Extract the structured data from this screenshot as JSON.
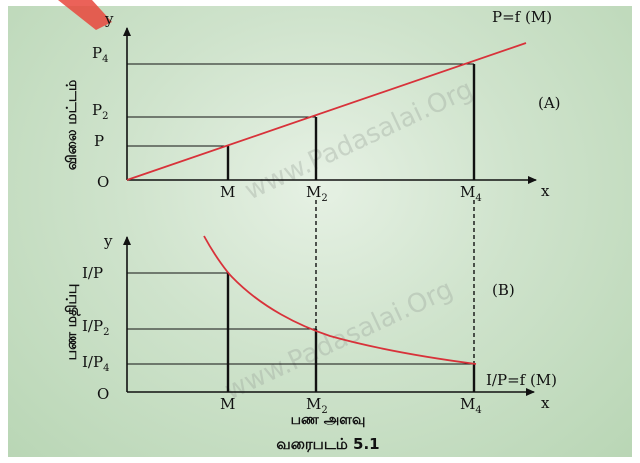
{
  "top": {
    "y_axis": "y",
    "x_axis": "x",
    "origin": "O",
    "y_axis_title": "விலை மட்டம்",
    "function_label": "P=f (M)",
    "panel_label": "(A)",
    "y_ticks": [
      {
        "base": "P",
        "sub": "4"
      },
      {
        "base": "P",
        "sub": "2"
      },
      {
        "base": "P",
        "sub": ""
      }
    ],
    "x_ticks": [
      {
        "base": "M",
        "sub": ""
      },
      {
        "base": "M",
        "sub": "2"
      },
      {
        "base": "M",
        "sub": "4"
      }
    ]
  },
  "bottom": {
    "y_axis": "y",
    "x_axis": "x",
    "origin": "O",
    "y_axis_title": "பண மதிப்பு",
    "function_label": "I/P=f (M)",
    "panel_label": "(B)",
    "y_ticks": [
      {
        "base": "I/P",
        "sub": ""
      },
      {
        "base": "I/P",
        "sub": "2"
      },
      {
        "base": "I/P",
        "sub": "4"
      }
    ],
    "x_ticks": [
      {
        "base": "M",
        "sub": ""
      },
      {
        "base": "M",
        "sub": "2"
      },
      {
        "base": "M",
        "sub": "4"
      }
    ],
    "x_axis_title": "பண அளவு"
  },
  "caption": "வரைபடம் 5.1",
  "watermark": "www.Padasalai.Org",
  "colors": {
    "curve": "#d8323a",
    "axis": "#111111",
    "background": "#cfe3cc"
  }
}
